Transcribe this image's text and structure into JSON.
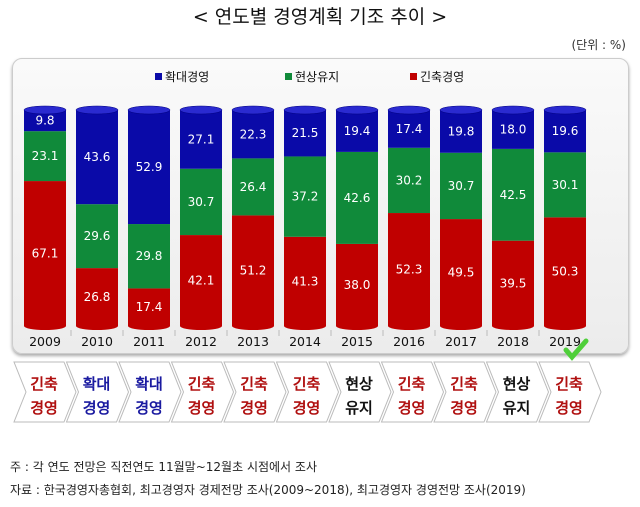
{
  "title": "< 연도별 경영계획 기조 추이 >",
  "unit": "(단위 : %)",
  "chart_data": {
    "type": "bar",
    "stacked": true,
    "categories": [
      "2009",
      "2010",
      "2011",
      "2012",
      "2013",
      "2014",
      "2015",
      "2016",
      "2017",
      "2018",
      "2019"
    ],
    "series": [
      {
        "name": "긴축경영",
        "color": "#c00000",
        "values": [
          67.1,
          26.8,
          17.4,
          42.1,
          51.2,
          41.3,
          38.0,
          52.3,
          49.5,
          39.5,
          50.3
        ]
      },
      {
        "name": "현상유지",
        "color": "#108a3a",
        "values": [
          23.1,
          29.6,
          29.8,
          30.7,
          26.4,
          37.2,
          42.6,
          30.2,
          30.7,
          42.5,
          30.1
        ]
      },
      {
        "name": "확대경영",
        "color": "#0a0aa8",
        "values": [
          9.8,
          43.6,
          52.9,
          27.1,
          22.3,
          21.5,
          19.4,
          17.4,
          19.8,
          18.0,
          19.6
        ]
      }
    ],
    "legend_order": [
      "확대경영",
      "현상유지",
      "긴축경영"
    ],
    "legend": "top-center",
    "ylim": [
      0,
      100
    ]
  },
  "stances": [
    {
      "line1": "긴축",
      "line2": "경영",
      "color": "#b01010"
    },
    {
      "line1": "확대",
      "line2": "경영",
      "color": "#1a1aa0"
    },
    {
      "line1": "확대",
      "line2": "경영",
      "color": "#1a1aa0"
    },
    {
      "line1": "긴축",
      "line2": "경영",
      "color": "#b01010"
    },
    {
      "line1": "긴축",
      "line2": "경영",
      "color": "#b01010"
    },
    {
      "line1": "긴축",
      "line2": "경영",
      "color": "#b01010"
    },
    {
      "line1": "현상",
      "line2": "유지",
      "color": "#111111"
    },
    {
      "line1": "긴축",
      "line2": "경영",
      "color": "#b01010"
    },
    {
      "line1": "긴축",
      "line2": "경영",
      "color": "#b01010"
    },
    {
      "line1": "현상",
      "line2": "유지",
      "color": "#111111"
    },
    {
      "line1": "긴축",
      "line2": "경영",
      "color": "#b01010"
    }
  ],
  "check_icon": "checkmark-icon",
  "note": "주 : 각 연도 전망은 직전연도 11월말~12월초 시점에서 조사",
  "source": "자료 : 한국경영자총협회, 최고경영자 경제전망 조사(2009~2018), 최고경영자 경영전망 조사(2019)"
}
